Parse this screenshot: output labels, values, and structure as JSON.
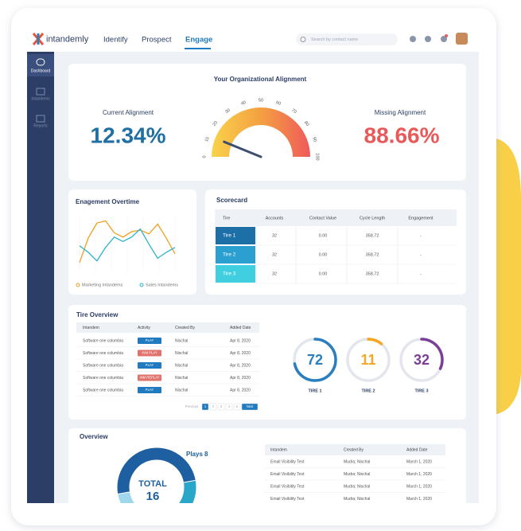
{
  "nav": {
    "brand": "intandemly",
    "links": [
      "Identify",
      "Prospect",
      "Engage"
    ],
    "search": "Search by contact name"
  },
  "sidebar": [
    "Dashboard",
    "Intandems",
    "Reports"
  ],
  "alignment": {
    "title": "Your Organizational Alignment",
    "current": {
      "label": "Current Alignment",
      "value": 12.34,
      "value_label": "12.34%",
      "color": "#1f6fa3"
    },
    "missing": {
      "label": "Missing Alignment",
      "value": 88.66,
      "value_label": "88.66%",
      "color": "#e85a5a"
    },
    "gauge_ticks": [
      0,
      10,
      20,
      30,
      40,
      50,
      60,
      70,
      80,
      90,
      100
    ]
  },
  "engagement": {
    "title": "Enagement Overtime",
    "type": "line",
    "ylim": [
      0,
      100
    ],
    "series": [
      {
        "name": "Marketing Intandems",
        "color": "#f0a020",
        "values": [
          15,
          60,
          88,
          92,
          70,
          62,
          72,
          75,
          68,
          86,
          60,
          31
        ]
      },
      {
        "name": "Sales Intandems",
        "color": "#2bb3c9",
        "values": [
          46,
          34,
          18,
          43,
          62,
          54,
          62,
          77,
          49,
          23,
          34,
          43
        ]
      }
    ]
  },
  "scorecard": {
    "title": "Scorecard",
    "headers": [
      "Tire",
      "Accounts",
      "Contact Value",
      "Cycle Length",
      "Engagement"
    ],
    "rows": [
      [
        "Tire 1",
        "32",
        "0.00",
        "358.72",
        "-"
      ],
      [
        "Tire 2",
        "32",
        "0.00",
        "358.72",
        "-"
      ],
      [
        "Tire 3",
        "32",
        "0.00",
        "358.72",
        "-"
      ]
    ],
    "tire_colors": [
      "#1d6fa8",
      "#2a9fd0",
      "#3fcfe0"
    ]
  },
  "tire_overview": {
    "title": "Tire Overview",
    "headers": [
      "Intandem",
      "Activity",
      "Created By",
      "Added Date"
    ],
    "rows": [
      [
        "Software one columbia",
        "PLAY",
        "Nischal",
        "Apr 8, 2020"
      ],
      [
        "Software one columbia",
        "INM PLAY",
        "Nischal",
        "Apr 8, 2020"
      ],
      [
        "Software one columbia",
        "PLAY",
        "Nischal",
        "Apr 8, 2020"
      ],
      [
        "Software one columbia",
        "INM REPLAY",
        "Nischal",
        "Apr 8, 2020"
      ],
      [
        "Software one columbia",
        "PLAY",
        "Nischal",
        "Apr 8, 2020"
      ]
    ],
    "activity_colors": [
      "#1f7abf",
      "#e0736b",
      "#1f7abf",
      "#e0736b",
      "#1f7abf"
    ],
    "pagination": [
      "Previous",
      "1",
      "2",
      "3",
      "4",
      "5",
      "Next"
    ],
    "lim": [
      0,
      100
    ],
    "rings": [
      {
        "label": "TIRE 1",
        "value": 72,
        "color": "#2a7fc0"
      },
      {
        "label": "TIRE 2",
        "value": 11,
        "color": "#f5a623"
      },
      {
        "label": "TIRE 3",
        "value": 32,
        "color": "#7b3f98"
      }
    ]
  },
  "overview": {
    "title": "Overview",
    "donut": {
      "total_label": "TOTAL",
      "total": 16,
      "segments": [
        {
          "name": "Plays",
          "value": 8,
          "color": "#1d5fa0"
        },
        {
          "value": 5,
          "color": "#2aa6c9"
        },
        {
          "value": 3,
          "color": "#9fd8ec"
        }
      ]
    },
    "headers": [
      "Intandem",
      "Created By",
      "Added Date"
    ],
    "rows": [
      [
        "Email Visibility Test",
        "Mudra; Nischal",
        "March 1, 2020"
      ],
      [
        "Email Visibility Test",
        "Mudra; Nischal",
        "March 1, 2020"
      ],
      [
        "Email Visibility Test",
        "Mudra; Nischal",
        "March 1, 2020"
      ],
      [
        "Email Visibility Test",
        "Mudra; Nischal",
        "March 1, 2020"
      ]
    ]
  }
}
